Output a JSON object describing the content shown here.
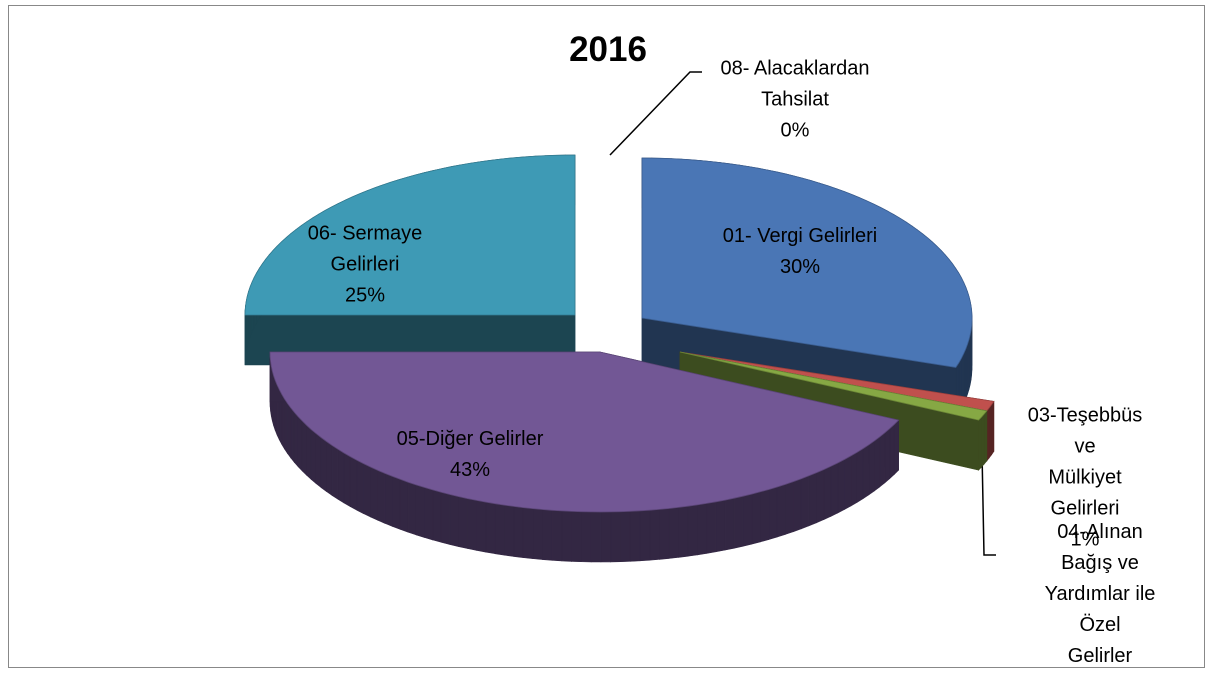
{
  "chart_data": {
    "type": "pie",
    "title": "2016",
    "categories": [
      "01- Vergi Gelirleri",
      "03-Teşebbüs ve\nMülkiyet Gelirleri",
      "04-Alınan Bağış ve\nYardımlar ile Özel\nGelirler",
      "05-Diğer Gelirler",
      "06- Sermaye\nGelirleri",
      "08- Alacaklardan\nTahsilat"
    ],
    "values": [
      30,
      1,
      1,
      43,
      25,
      0
    ],
    "value_labels": [
      "30%",
      "1%",
      "1%",
      "43%",
      "25%",
      "0%"
    ],
    "colors": [
      "#4a76b5",
      "#c0504d",
      "#86a844",
      "#725795",
      "#3e9ab5",
      "#f79646"
    ]
  }
}
